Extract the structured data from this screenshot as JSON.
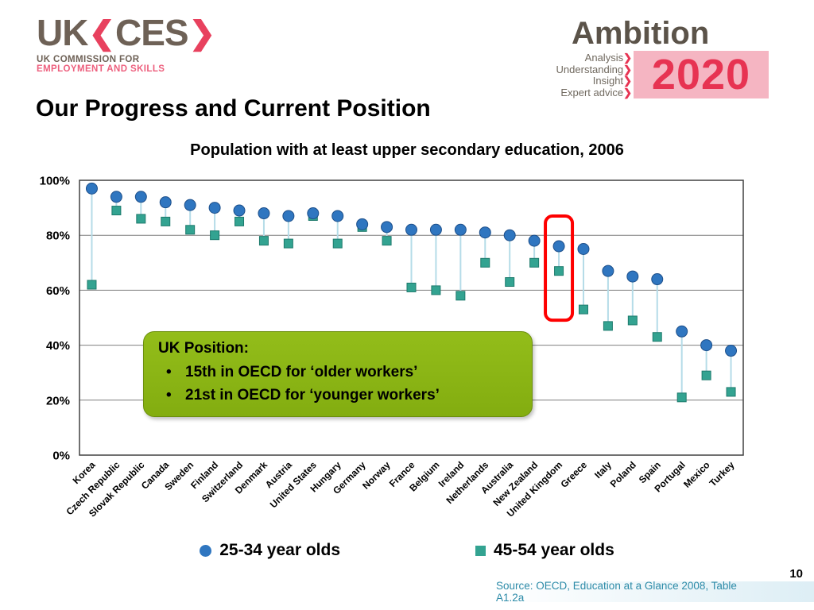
{
  "header": {
    "ukces": {
      "name_left": "UK",
      "name_right": "CES",
      "chevron_open": "❮",
      "chevron_close": "❯",
      "tagline1": "UK COMMISSION FOR",
      "tagline2": "EMPLOYMENT AND SKILLS"
    },
    "ambition": {
      "title": "Ambition",
      "items": [
        "Analysis",
        "Understanding",
        "Insight",
        "Expert advice"
      ],
      "chevron": "❯",
      "year": "2020"
    }
  },
  "slide": {
    "title": "Our Progress and Current Position",
    "page_number": "10",
    "source": "Source:  OECD, Education at a Glance 2008,  Table A1.2a"
  },
  "callout": {
    "title": "UK Position:",
    "bullet_char": "•",
    "bullets": [
      "15th in OECD for ‘older workers’",
      "21st in OECD for ‘younger workers’"
    ]
  },
  "chart_data": {
    "type": "scatter",
    "title": "Population with at least upper secondary education, 2006",
    "categories": [
      "Korea",
      "Czech Republic",
      "Slovak Republic",
      "Canada",
      "Sweden",
      "Finland",
      "Switzerland",
      "Denmark",
      "Austria",
      "United States",
      "Hungary",
      "Germany",
      "Norway",
      "France",
      "Belgium",
      "Ireland",
      "Netherlands",
      "Australia",
      "New Zealand",
      "United Kingdom",
      "Greece",
      "Italy",
      "Poland",
      "Spain",
      "Portugal",
      "Mexico",
      "Turkey"
    ],
    "series": [
      {
        "name": "25-34 year olds",
        "marker": "circle",
        "color": "#2f76c0",
        "values": [
          97,
          94,
          94,
          92,
          91,
          90,
          89,
          88,
          87,
          88,
          87,
          84,
          83,
          82,
          82,
          82,
          81,
          80,
          78,
          76,
          75,
          67,
          65,
          64,
          45,
          40,
          38
        ]
      },
      {
        "name": "45-54 year olds",
        "marker": "square",
        "color": "#33a391",
        "values": [
          62,
          89,
          86,
          85,
          82,
          80,
          85,
          78,
          77,
          87,
          77,
          83,
          78,
          61,
          60,
          58,
          70,
          63,
          70,
          67,
          53,
          47,
          49,
          43,
          21,
          29,
          23
        ]
      }
    ],
    "ylabel": "",
    "xlabel": "",
    "ylim": [
      0,
      100
    ],
    "ytick_step": 20,
    "ytick_suffix": "%",
    "grid": true,
    "legend_position": "bottom",
    "highlight_category": "United Kingdom",
    "highlight_color": "#fe0000",
    "connector_color": "#b5dce8"
  }
}
